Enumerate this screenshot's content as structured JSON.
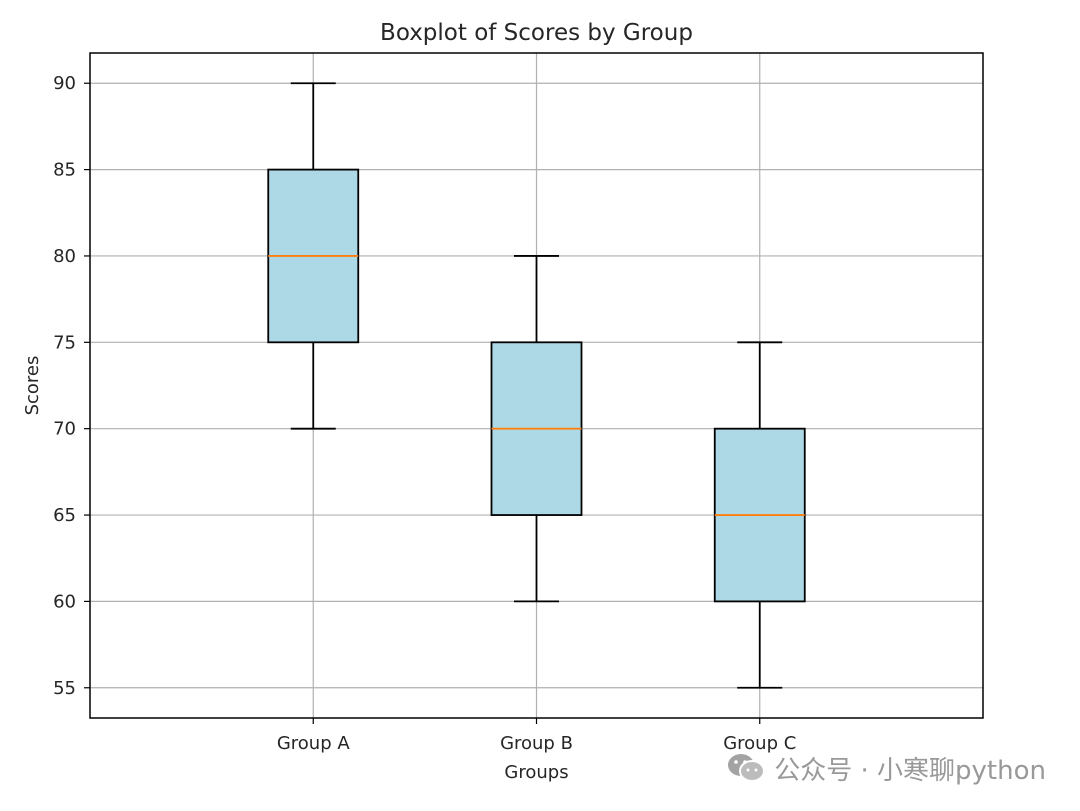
{
  "chart_data": {
    "type": "boxplot",
    "title": "Boxplot of Scores by Group",
    "xlabel": "Groups",
    "ylabel": "Scores",
    "ylim": [
      53.25,
      91.75
    ],
    "yticks": [
      55,
      60,
      65,
      70,
      75,
      80,
      85,
      90
    ],
    "grid": true,
    "categories": [
      "Group A",
      "Group B",
      "Group C"
    ],
    "boxes": [
      {
        "name": "Group A",
        "whisker_low": 70,
        "q1": 75,
        "median": 80,
        "q3": 85,
        "whisker_high": 90
      },
      {
        "name": "Group B",
        "whisker_low": 60,
        "q1": 65,
        "median": 70,
        "q3": 75,
        "whisker_high": 80
      },
      {
        "name": "Group C",
        "whisker_low": 55,
        "q1": 60,
        "median": 65,
        "q3": 70,
        "whisker_high": 75
      }
    ],
    "colors": {
      "box_fill": "#add8e6",
      "median": "#ff7f0e",
      "grid": "#b0b0b0",
      "edge": "#000000"
    }
  },
  "watermark": {
    "icon": "wechat-icon",
    "text": "公众号 · 小寒聊python"
  }
}
